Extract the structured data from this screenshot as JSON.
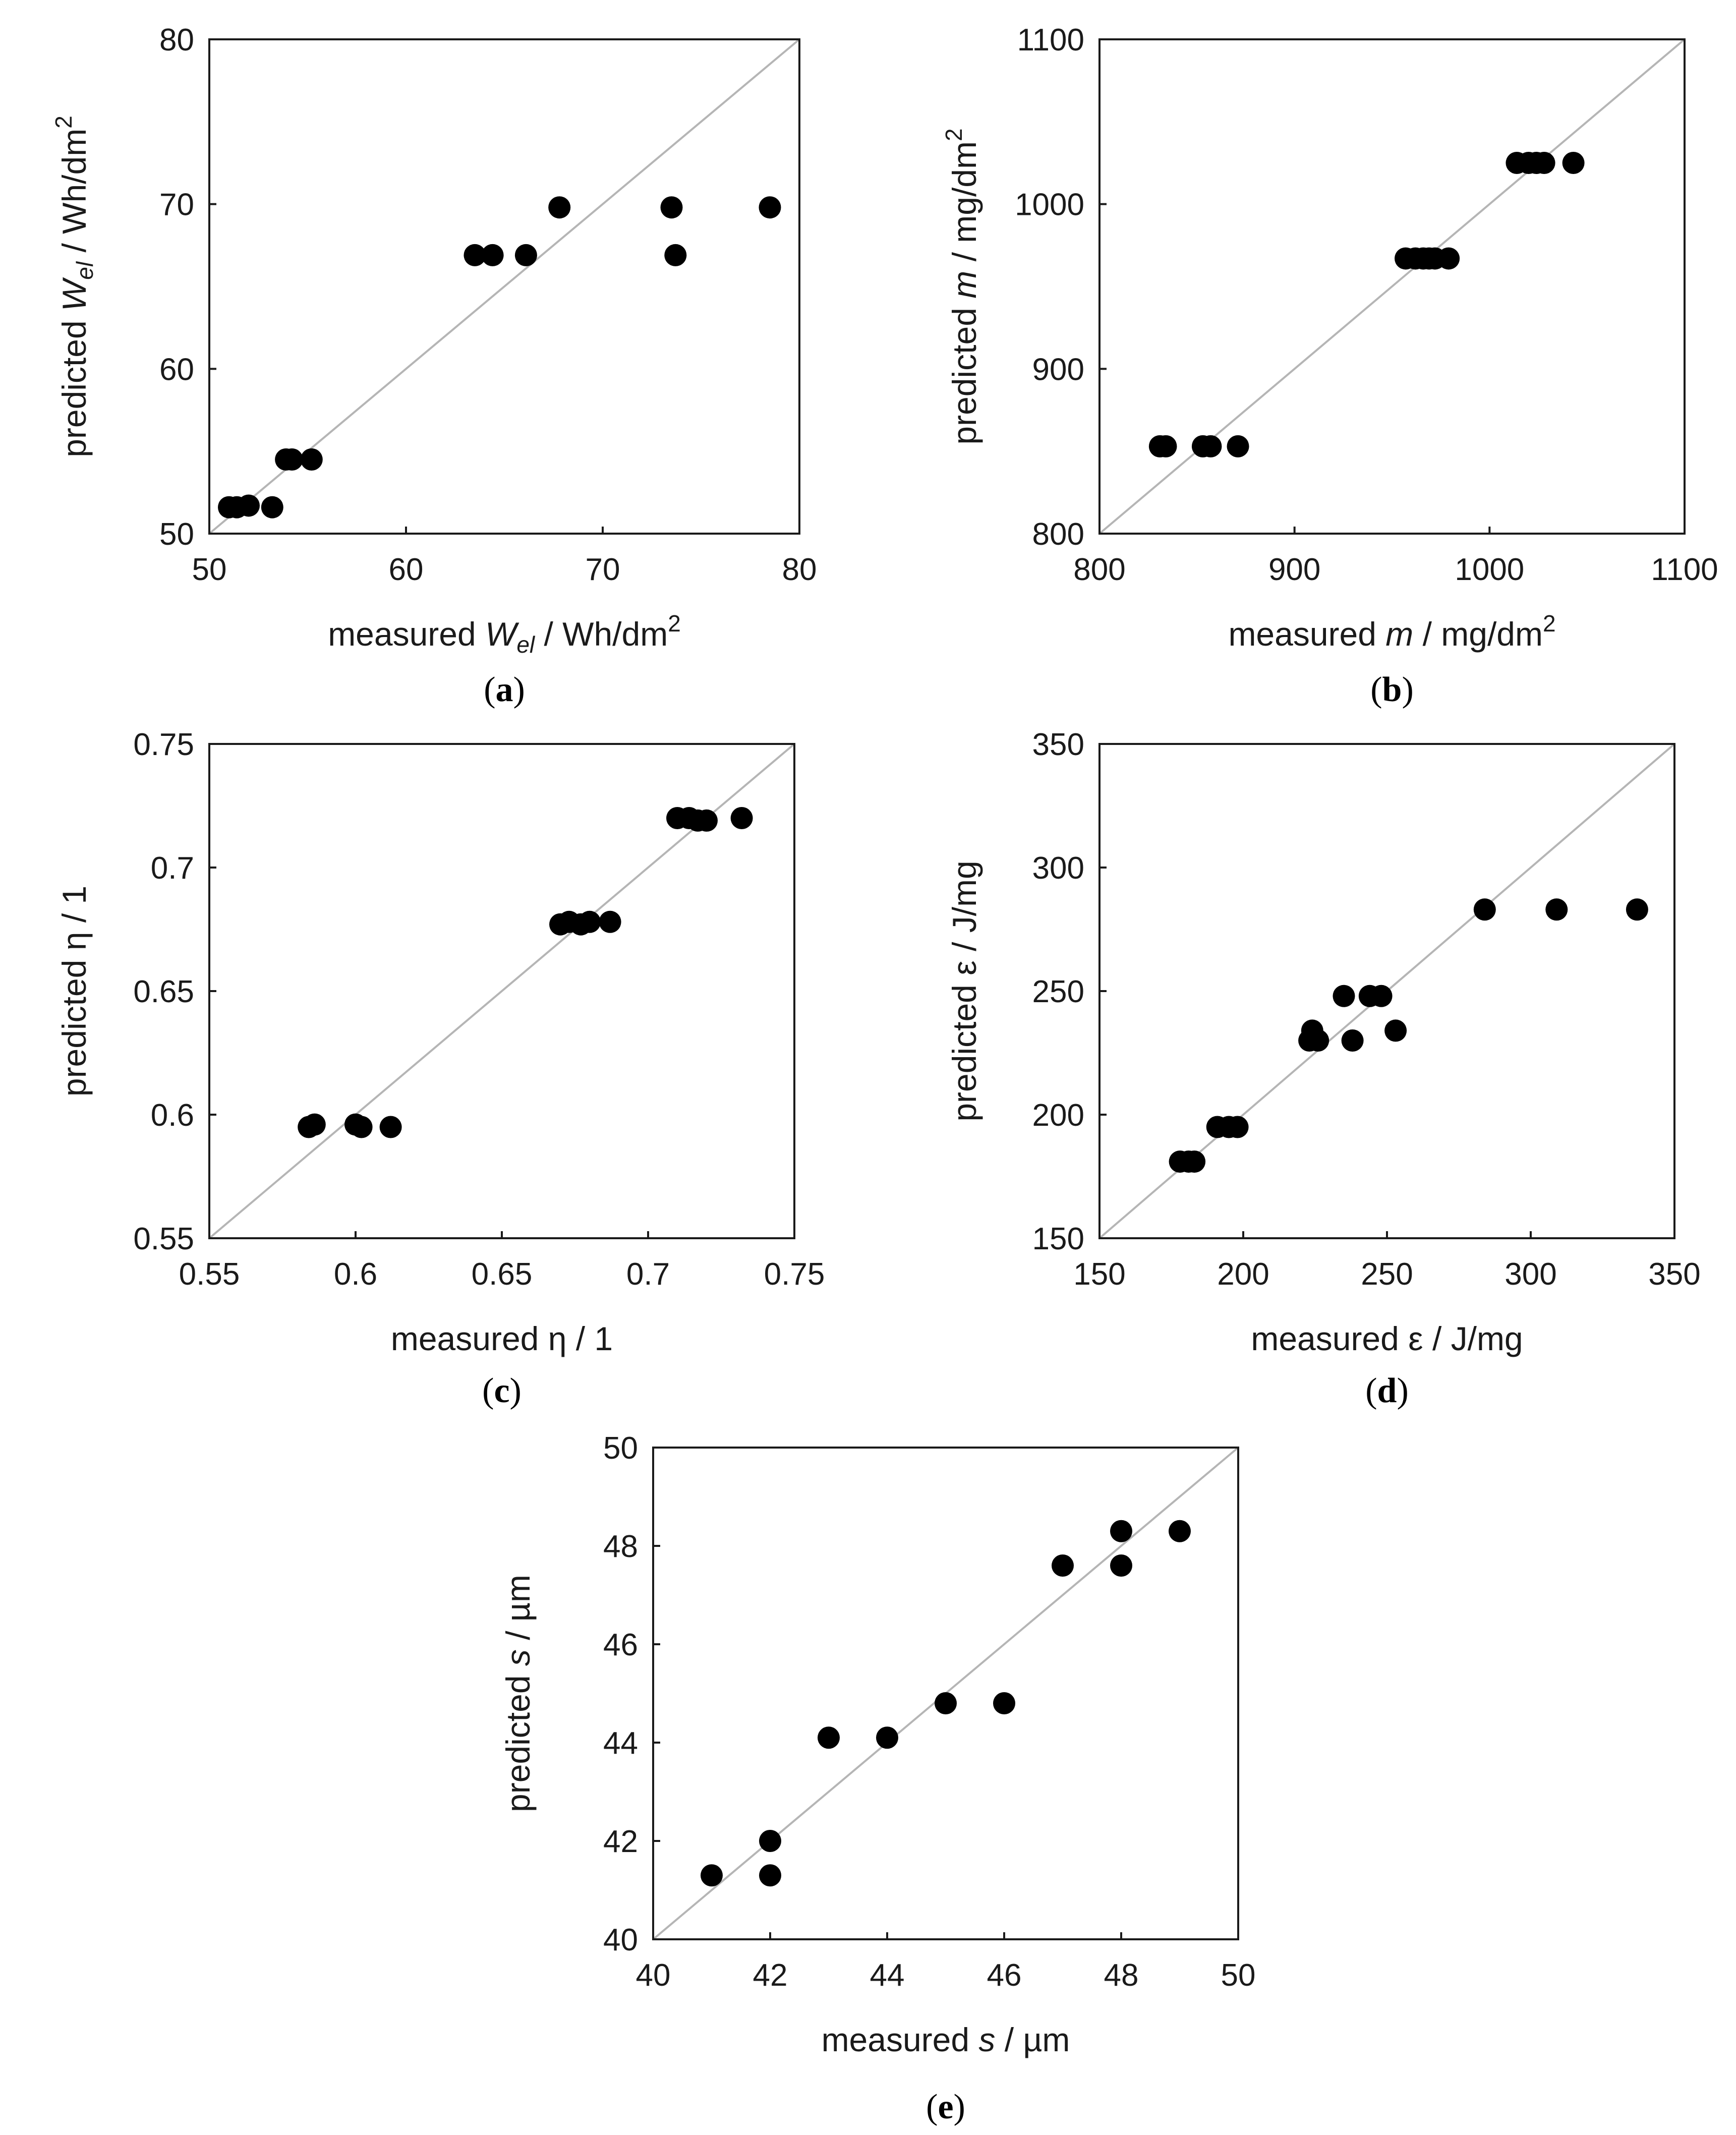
{
  "chart_data": [
    {
      "type": "scatter",
      "panel": "a",
      "panel_label": "(a)",
      "xlabel": {
        "prefix": "measured ",
        "var": "W",
        "sub": "el",
        "unit": " / Wh/dm",
        "sup": "2"
      },
      "ylabel": {
        "prefix": "predicted ",
        "var": "W",
        "sub": "el",
        "unit": " / Wh/dm",
        "sup": "2"
      },
      "xlim": [
        50,
        80
      ],
      "ylim": [
        50,
        80
      ],
      "xticks": [
        "50",
        "60",
        "70",
        "80"
      ],
      "yticks": [
        "50",
        "60",
        "70",
        "80"
      ],
      "diagonal": true,
      "points": [
        [
          51.0,
          51.6
        ],
        [
          51.4,
          51.6
        ],
        [
          52.0,
          51.7
        ],
        [
          53.2,
          51.6
        ],
        [
          53.9,
          54.5
        ],
        [
          54.2,
          54.5
        ],
        [
          55.2,
          54.5
        ],
        [
          63.5,
          66.9
        ],
        [
          64.4,
          66.9
        ],
        [
          66.1,
          66.9
        ],
        [
          67.8,
          69.8
        ],
        [
          73.5,
          69.8
        ],
        [
          73.7,
          66.9
        ],
        [
          78.5,
          69.8
        ]
      ]
    },
    {
      "type": "scatter",
      "panel": "b",
      "panel_label": "(b)",
      "xlabel": {
        "prefix": "measured ",
        "var": "m",
        "sub": "",
        "unit": " / mg/dm",
        "sup": "2"
      },
      "ylabel": {
        "prefix": "predicted ",
        "var": "m",
        "sub": "",
        "unit": " / mg/dm",
        "sup": "2"
      },
      "xlim": [
        800,
        1100
      ],
      "ylim": [
        800,
        1100
      ],
      "xticks": [
        "800",
        "900",
        "1000",
        "1100"
      ],
      "yticks": [
        "800",
        "900",
        "1000",
        "1100"
      ],
      "diagonal": true,
      "points": [
        [
          831,
          853
        ],
        [
          834,
          853
        ],
        [
          853,
          853
        ],
        [
          857,
          853
        ],
        [
          871,
          853
        ],
        [
          957,
          967
        ],
        [
          962,
          967
        ],
        [
          966,
          967
        ],
        [
          969,
          967
        ],
        [
          972,
          967
        ],
        [
          979,
          967
        ],
        [
          1014,
          1025
        ],
        [
          1020,
          1025
        ],
        [
          1024,
          1025
        ],
        [
          1028,
          1025
        ],
        [
          1043,
          1025
        ]
      ]
    },
    {
      "type": "scatter",
      "panel": "c",
      "panel_label": "(c)",
      "xlabel": {
        "prefix": "measured η / 1",
        "var": "",
        "sub": "",
        "unit": "",
        "sup": ""
      },
      "ylabel": {
        "prefix": "predicted η / 1",
        "var": "",
        "sub": "",
        "unit": "",
        "sup": ""
      },
      "xlim": [
        0.55,
        0.75
      ],
      "ylim": [
        0.55,
        0.75
      ],
      "xticks": [
        "0.55",
        "0.6",
        "0.65",
        "0.7",
        "0.75"
      ],
      "yticks": [
        "0.55",
        "0.6",
        "0.65",
        "0.7",
        "0.75"
      ],
      "diagonal": true,
      "points": [
        [
          0.584,
          0.595
        ],
        [
          0.586,
          0.596
        ],
        [
          0.6,
          0.596
        ],
        [
          0.602,
          0.595
        ],
        [
          0.612,
          0.595
        ],
        [
          0.67,
          0.677
        ],
        [
          0.673,
          0.678
        ],
        [
          0.677,
          0.677
        ],
        [
          0.68,
          0.678
        ],
        [
          0.687,
          0.678
        ],
        [
          0.71,
          0.72
        ],
        [
          0.714,
          0.72
        ],
        [
          0.717,
          0.719
        ],
        [
          0.72,
          0.719
        ],
        [
          0.732,
          0.72
        ]
      ]
    },
    {
      "type": "scatter",
      "panel": "d",
      "panel_label": "(d)",
      "xlabel": {
        "prefix": "measured ε / J/mg",
        "var": "",
        "sub": "",
        "unit": "",
        "sup": ""
      },
      "ylabel": {
        "prefix": "predicted ε / J/mg",
        "var": "",
        "sub": "",
        "unit": "",
        "sup": ""
      },
      "xlim": [
        150,
        350
      ],
      "ylim": [
        150,
        350
      ],
      "xticks": [
        "150",
        "200",
        "250",
        "300",
        "350"
      ],
      "yticks": [
        "150",
        "200",
        "250",
        "300",
        "350"
      ],
      "diagonal": true,
      "points": [
        [
          178,
          181
        ],
        [
          181,
          181
        ],
        [
          183,
          181
        ],
        [
          191,
          195
        ],
        [
          195,
          195
        ],
        [
          198,
          195
        ],
        [
          223,
          230
        ],
        [
          224,
          234
        ],
        [
          226,
          230
        ],
        [
          235,
          248
        ],
        [
          238,
          230
        ],
        [
          244,
          248
        ],
        [
          248,
          248
        ],
        [
          253,
          234
        ],
        [
          284,
          283
        ],
        [
          309,
          283
        ],
        [
          337,
          283
        ]
      ]
    },
    {
      "type": "scatter",
      "panel": "e",
      "panel_label": "(e)",
      "xlabel": {
        "prefix": "measured ",
        "var": "s",
        "sub": "",
        "unit": " / µm",
        "sup": ""
      },
      "ylabel": {
        "prefix": "predicted ",
        "var": "s",
        "sub": "",
        "unit": " / µm",
        "sup": ""
      },
      "xlim": [
        40,
        50
      ],
      "ylim": [
        40,
        50
      ],
      "xticks": [
        "40",
        "42",
        "44",
        "46",
        "48",
        "50"
      ],
      "yticks": [
        "40",
        "42",
        "44",
        "46",
        "48",
        "50"
      ],
      "diagonal": true,
      "points": [
        [
          41,
          41.3
        ],
        [
          42,
          41.3
        ],
        [
          42,
          42.0
        ],
        [
          43,
          44.1
        ],
        [
          44,
          44.1
        ],
        [
          45,
          44.8
        ],
        [
          46,
          44.8
        ],
        [
          47,
          47.6
        ],
        [
          48,
          47.6
        ],
        [
          48,
          48.3
        ],
        [
          49,
          48.3
        ]
      ]
    }
  ]
}
